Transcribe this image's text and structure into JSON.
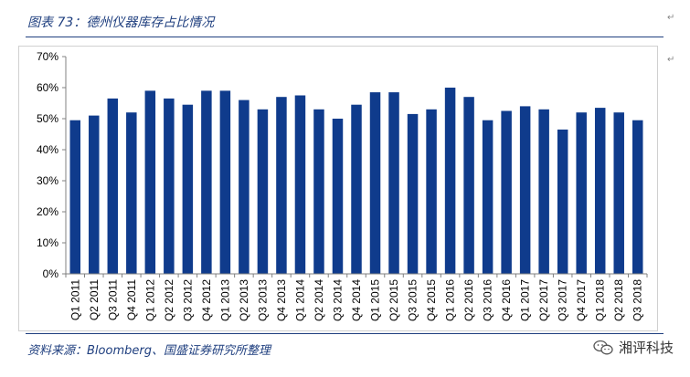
{
  "title": "图表 73：德州仪器库存占比情况",
  "source": "资料来源：Bloomberg、国盛证券研究所整理",
  "watermark": "湘评科技",
  "colors": {
    "bar": "#0f3b8c",
    "title": "#1f3f7f"
  },
  "chart_data": {
    "type": "bar",
    "categories": [
      "Q1 2011",
      "Q2 2011",
      "Q3 2011",
      "Q4 2011",
      "Q1 2012",
      "Q2 2012",
      "Q3 2012",
      "Q4 2012",
      "Q1 2013",
      "Q2 2013",
      "Q3 2013",
      "Q4 2013",
      "Q1 2014",
      "Q2 2014",
      "Q3 2014",
      "Q4 2014",
      "Q1 2015",
      "Q2 2015",
      "Q3 2015",
      "Q4 2015",
      "Q1 2016",
      "Q2 2016",
      "Q3 2016",
      "Q4 2016",
      "Q1 2017",
      "Q2 2017",
      "Q3 2017",
      "Q4 2017",
      "Q1 2018",
      "Q2 2018",
      "Q3 2018"
    ],
    "values": [
      49.5,
      51,
      56.5,
      52,
      59,
      56.5,
      54.5,
      59,
      59,
      56,
      53,
      57,
      57.5,
      53,
      50,
      54.5,
      58.5,
      58.5,
      51.5,
      53,
      60,
      57,
      49.5,
      52.5,
      54,
      53,
      46.5,
      52,
      53.5,
      52,
      49.5
    ],
    "ylim": [
      0,
      70
    ],
    "yticks": [
      "0%",
      "10%",
      "20%",
      "30%",
      "40%",
      "50%",
      "60%",
      "70%"
    ],
    "ytick_values": [
      0,
      10,
      20,
      30,
      40,
      50,
      60,
      70
    ],
    "grid": false,
    "legend": "none"
  }
}
